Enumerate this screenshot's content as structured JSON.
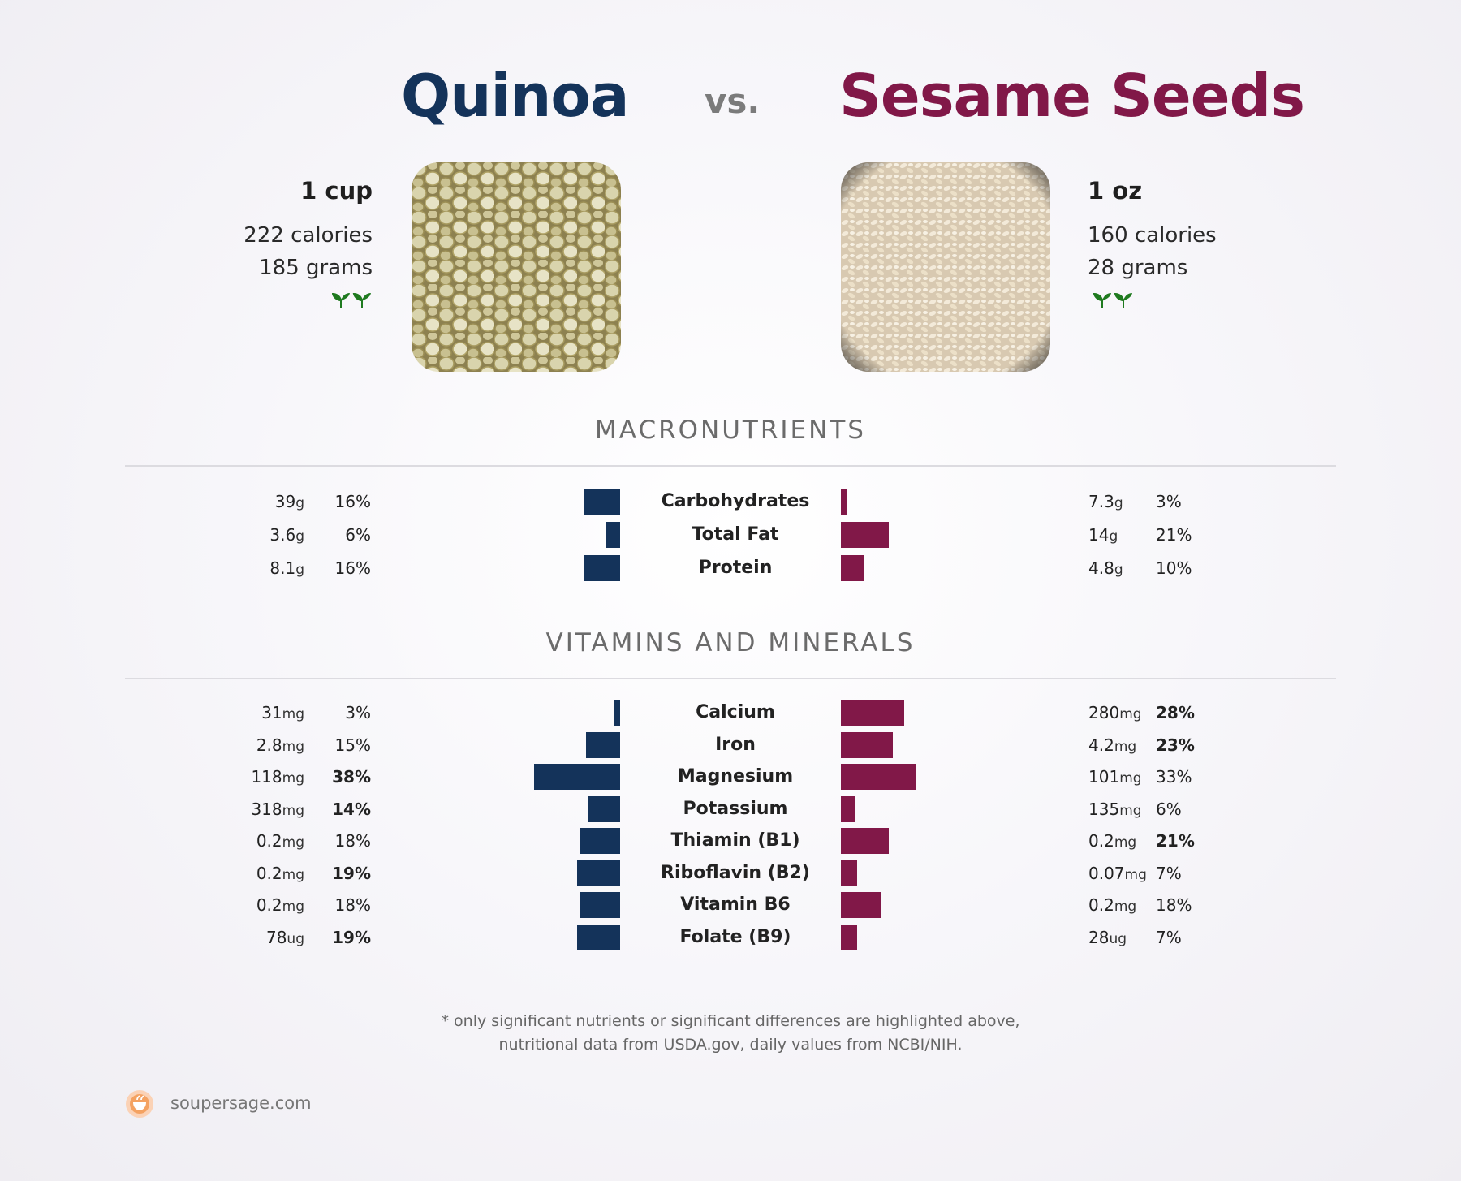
{
  "header": {
    "left_title": "Quinoa",
    "vs": "vs.",
    "right_title": "Sesame Seeds"
  },
  "left_food": {
    "serving": "1 cup",
    "calories": "222 calories",
    "grams": "185 grams",
    "image_icon": "quinoa-photo",
    "badge_icon": "sprout-icon"
  },
  "right_food": {
    "serving": "1 oz",
    "calories": "160 calories",
    "grams": "28 grams",
    "image_icon": "sesame-seeds-photo",
    "badge_icon": "sprout-icon"
  },
  "sections": {
    "macros_title": "MACRONUTRIENTS",
    "vitamins_title": "VITAMINS AND MINERALS"
  },
  "colors": {
    "left": "#14335a",
    "right": "#811848",
    "leaf": "#1f7a1f",
    "brand": "#f4a261"
  },
  "chart_data": [
    {
      "type": "bar",
      "title": "MACRONUTRIENTS",
      "categories": [
        "Carbohydrates",
        "Total Fat",
        "Protein"
      ],
      "series": [
        {
          "name": "Quinoa",
          "amounts": [
            "39",
            "3.6",
            "8.1"
          ],
          "units": [
            "g",
            "g",
            "g"
          ],
          "values": [
            16,
            6,
            16
          ],
          "dv_labels": [
            "16%",
            "6%",
            "16%"
          ],
          "bold": [
            false,
            false,
            false
          ]
        },
        {
          "name": "Sesame Seeds",
          "amounts": [
            "7.3",
            "14",
            "4.8"
          ],
          "units": [
            "g",
            "g",
            "g"
          ],
          "values": [
            3,
            21,
            10
          ],
          "dv_labels": [
            "3%",
            "21%",
            "10%"
          ],
          "bold": [
            false,
            false,
            false
          ]
        }
      ]
    },
    {
      "type": "bar",
      "title": "VITAMINS AND MINERALS",
      "categories": [
        "Calcium",
        "Iron",
        "Magnesium",
        "Potassium",
        "Thiamin (B1)",
        "Riboflavin (B2)",
        "Vitamin B6",
        "Folate (B9)"
      ],
      "series": [
        {
          "name": "Quinoa",
          "amounts": [
            "31",
            "2.8",
            "118",
            "318",
            "0.2",
            "0.2",
            "0.2",
            "78"
          ],
          "units": [
            "mg",
            "mg",
            "mg",
            "mg",
            "mg",
            "mg",
            "mg",
            "ug"
          ],
          "values": [
            3,
            15,
            38,
            14,
            18,
            19,
            18,
            19
          ],
          "dv_labels": [
            "3%",
            "15%",
            "38%",
            "14%",
            "18%",
            "19%",
            "18%",
            "19%"
          ],
          "bold": [
            false,
            false,
            true,
            true,
            false,
            true,
            false,
            true
          ]
        },
        {
          "name": "Sesame Seeds",
          "amounts": [
            "280",
            "4.2",
            "101",
            "135",
            "0.2",
            "0.07",
            "0.2",
            "28"
          ],
          "units": [
            "mg",
            "mg",
            "mg",
            "mg",
            "mg",
            "mg",
            "mg",
            "ug"
          ],
          "values": [
            28,
            23,
            33,
            6,
            21,
            7,
            18,
            7
          ],
          "dv_labels": [
            "28%",
            "23%",
            "33%",
            "6%",
            "21%",
            "7%",
            "18%",
            "7%"
          ],
          "bold": [
            true,
            true,
            false,
            false,
            true,
            false,
            false,
            false
          ]
        }
      ]
    }
  ],
  "footer": {
    "note_line1": "* only significant nutrients or significant differences are highlighted above,",
    "note_line2": "nutritional data from USDA.gov, daily values from NCBI/NIH.",
    "brand_icon": "soupersage-logo-icon",
    "brand": "soupersage.com"
  }
}
